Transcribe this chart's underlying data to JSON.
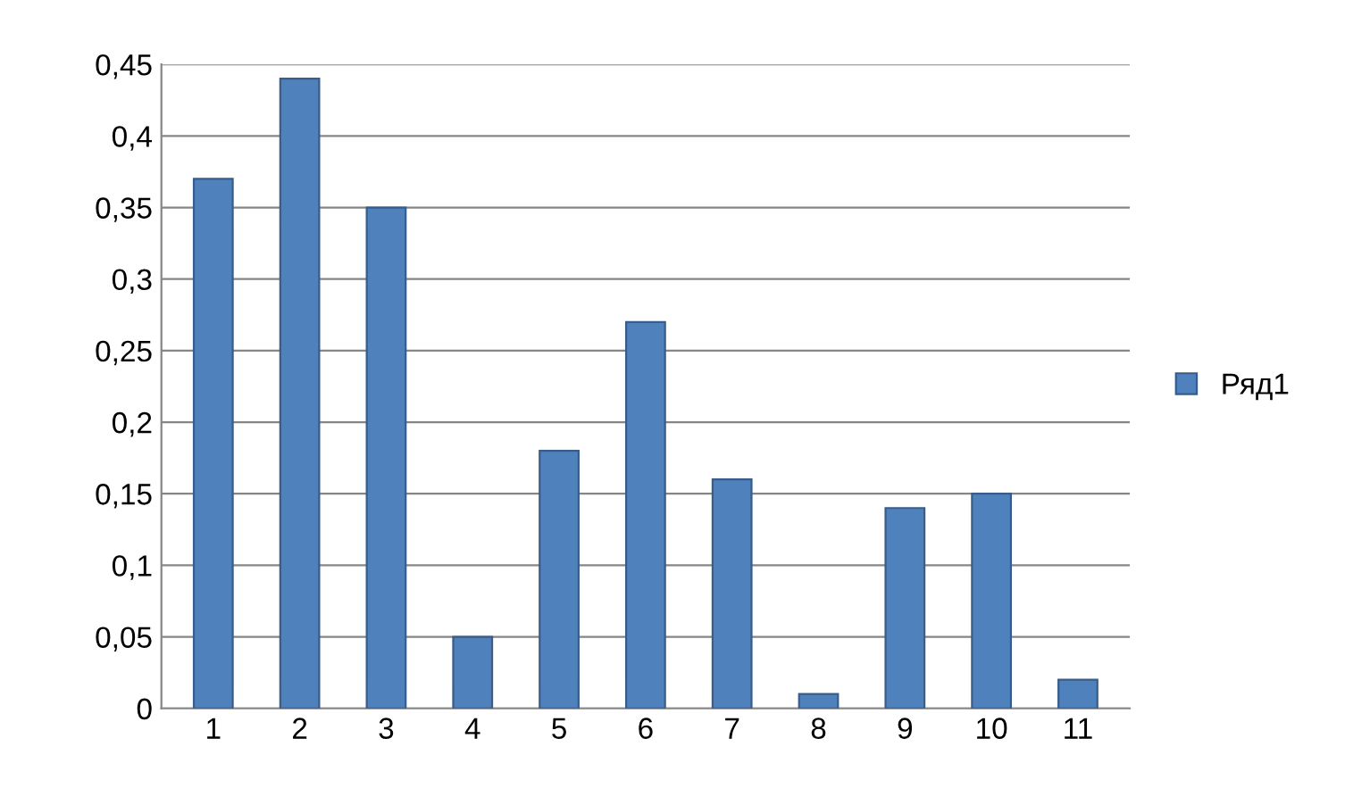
{
  "chart_data": {
    "type": "bar",
    "categories": [
      "1",
      "2",
      "3",
      "4",
      "5",
      "6",
      "7",
      "8",
      "9",
      "10",
      "11"
    ],
    "series": [
      {
        "name": "Ряд1",
        "color": "#4f81bd",
        "values": [
          0.37,
          0.44,
          0.35,
          0.05,
          0.18,
          0.27,
          0.16,
          0.01,
          0.14,
          0.15,
          0.02
        ]
      }
    ],
    "ylim": [
      0,
      0.45
    ],
    "yticks": [
      0,
      {
        "value": 0.05,
        "label": "0,05"
      },
      {
        "value": 0.1,
        "label": "0,1"
      },
      {
        "value": 0.15,
        "label": "0,15"
      },
      {
        "value": 0.2,
        "label": "0,2"
      },
      {
        "value": 0.25,
        "label": "0,25"
      },
      {
        "value": 0.3,
        "label": "0,3"
      },
      {
        "value": 0.35,
        "label": "0,35"
      },
      {
        "value": 0.4,
        "label": "0,4"
      },
      {
        "value": 0.45,
        "label": "0,45"
      }
    ],
    "grid": "y",
    "legend": "right"
  }
}
